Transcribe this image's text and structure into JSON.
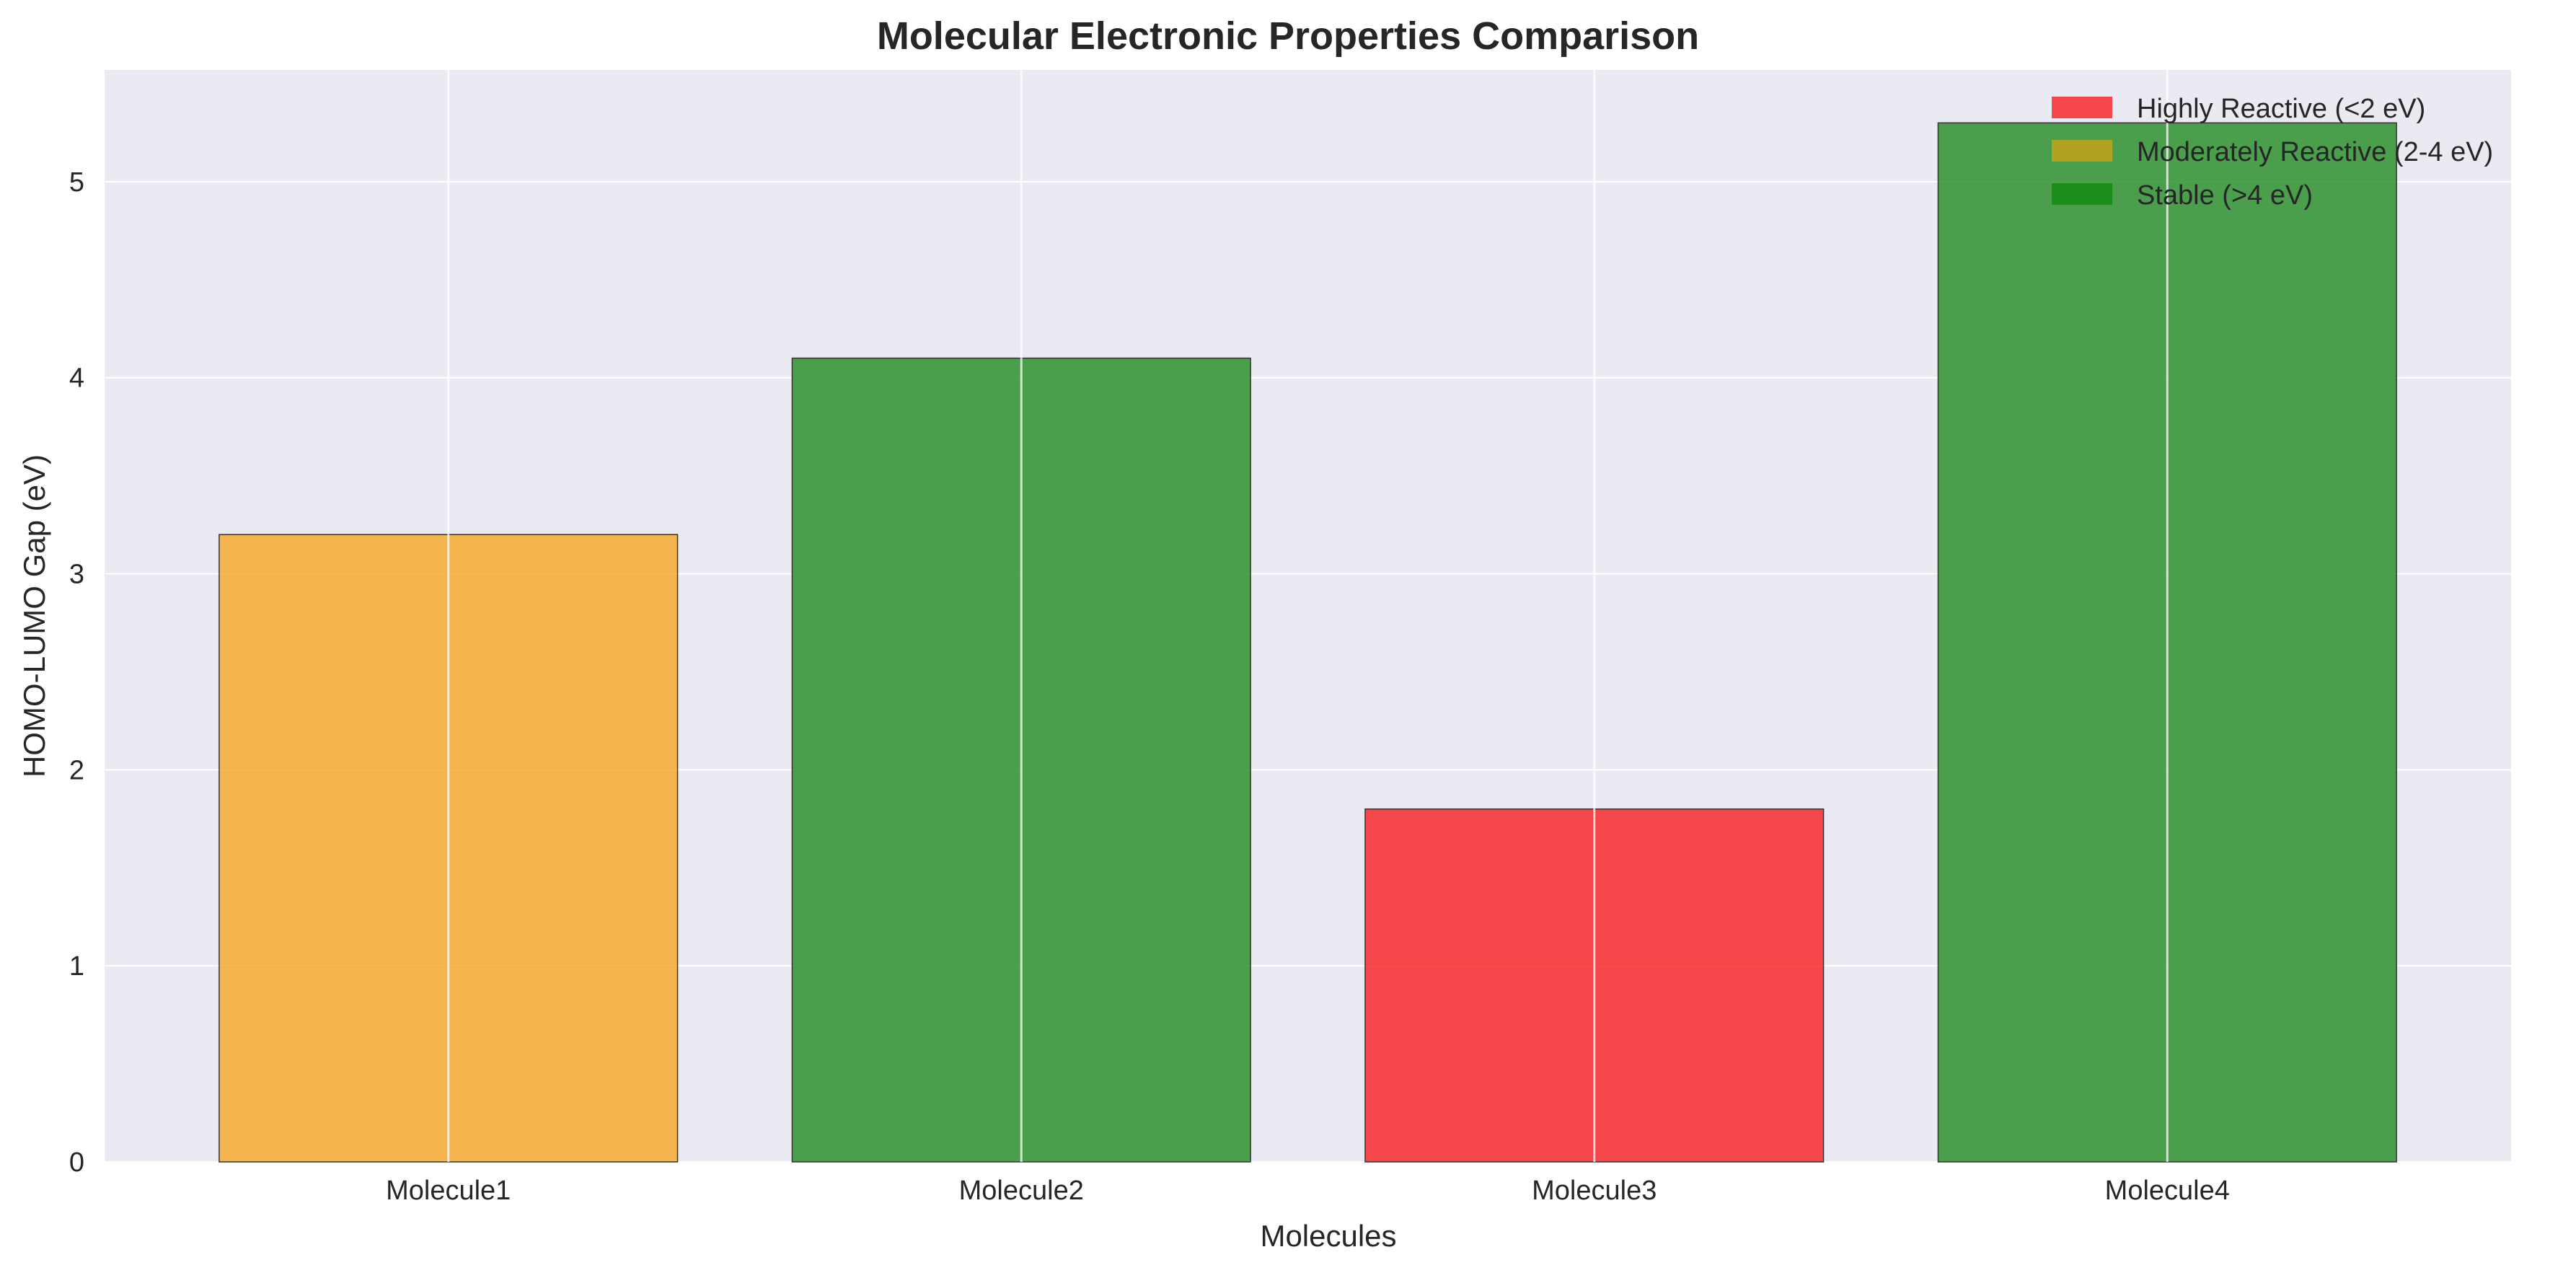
{
  "chart_data": {
    "type": "bar",
    "title": "Molecular Electronic Properties Comparison",
    "xlabel": "Molecules",
    "ylabel": "HOMO-LUMO Gap (eV)",
    "categories": [
      "Molecule1",
      "Molecule2",
      "Molecule3",
      "Molecule4"
    ],
    "values": [
      3.2,
      4.1,
      1.8,
      5.3
    ],
    "bar_colors": [
      "#F5A623",
      "#228B22",
      "#F71E1E",
      "#228B22"
    ],
    "ylim": [
      0,
      5.57
    ],
    "yticks": [
      0,
      1,
      2,
      3,
      4,
      5
    ],
    "grid": true,
    "legend": {
      "placement": "top-right",
      "entries": [
        {
          "label": "Highly Reactive (<2 eV)",
          "color": "#F71E1E"
        },
        {
          "label": "Moderately Reactive (2-4 eV)",
          "color": "#C8A415"
        },
        {
          "label": "Stable (>4 eV)",
          "color": "#108A10"
        }
      ]
    },
    "plot_background": "#EAEAF2",
    "grid_color": "#FFFFFF"
  }
}
